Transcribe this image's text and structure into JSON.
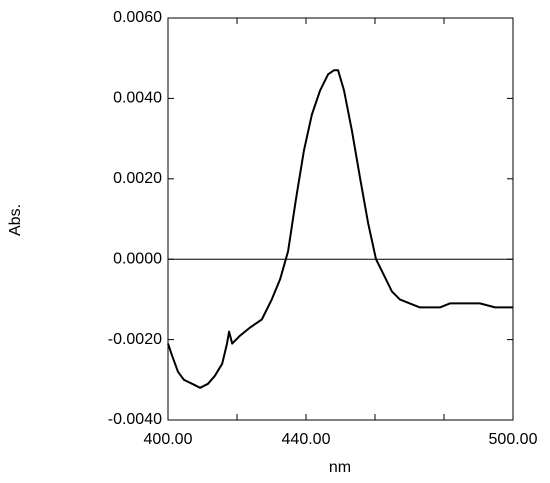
{
  "chart_data": {
    "type": "line",
    "xlabel": "nm",
    "ylabel": "Abs.",
    "color": "#000000",
    "x": [
      400,
      401.2,
      402.9,
      404.6,
      407,
      409.3,
      411.6,
      413.6,
      415.7,
      417.1,
      417.7,
      418.6,
      420.9,
      423.8,
      427.2,
      430.1,
      432.5,
      434.8,
      437.1,
      439.4,
      441.7,
      444.1,
      446.4,
      448.1,
      449.3,
      451,
      453.3,
      455.7,
      458,
      460.3,
      462.6,
      464.9,
      467.2,
      470.1,
      473,
      475.9,
      478.8,
      481.7,
      486.1,
      490.4,
      494.8,
      500
    ],
    "values": [
      -0.0021,
      -0.0024,
      -0.0028,
      -0.003,
      -0.0031,
      -0.0032,
      -0.0031,
      -0.0029,
      -0.0026,
      -0.0021,
      -0.0018,
      -0.0021,
      -0.0019,
      -0.0017,
      -0.0015,
      -0.001,
      -0.0005,
      0.0002,
      0.0015,
      0.0027,
      0.0036,
      0.0042,
      0.0046,
      0.0047,
      0.0047,
      0.0042,
      0.0032,
      0.002,
      0.0009,
      0.0,
      -0.0004,
      -0.0008,
      -0.001,
      -0.0011,
      -0.0012,
      -0.0012,
      -0.0012,
      -0.0011,
      -0.0011,
      -0.0011,
      -0.0012,
      -0.0012
    ],
    "xlim": [
      400,
      500
    ],
    "xticks": [
      {
        "value": 400,
        "label": "400.00"
      },
      {
        "value": 440,
        "label": "440.00"
      },
      {
        "value": 500,
        "label": "500.00"
      }
    ],
    "xminor_ticks": [
      420,
      460,
      480
    ],
    "ylim": [
      -0.004,
      0.006
    ],
    "yticks": [
      {
        "value": -0.004,
        "label": "-0.0040"
      },
      {
        "value": -0.002,
        "label": "-0.0020"
      },
      {
        "value": 0,
        "label": "0.0000"
      },
      {
        "value": 0.002,
        "label": "0.0020"
      },
      {
        "value": 0.004,
        "label": "0.0040"
      },
      {
        "value": 0.006,
        "label": "0.0060"
      }
    ],
    "hline": 0
  }
}
